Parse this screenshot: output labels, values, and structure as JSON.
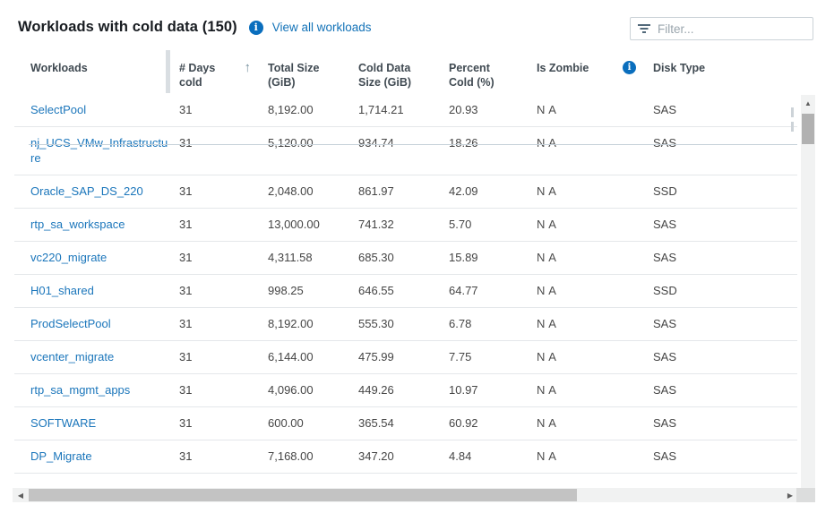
{
  "header": {
    "title": "Workloads with cold data (150)",
    "link_label": "View all workloads",
    "filter_placeholder": "Filter..."
  },
  "icons": {
    "info_glyph": "i",
    "sort_asc": "↑",
    "scroll_up": "▲",
    "scroll_down": "▼",
    "scroll_left": "◀",
    "scroll_right": "▶"
  },
  "colors": {
    "link_blue": "#1473b8",
    "info_icon_blue": "#0a6ebd",
    "header_text": "#404a52",
    "row_border": "#e4e7ea"
  },
  "table": {
    "columns": [
      {
        "label": "Workloads"
      },
      {
        "label": "# Days cold",
        "sort": "asc"
      },
      {
        "label": "Total Size (GiB)"
      },
      {
        "label": "Cold Data Size (GiB)"
      },
      {
        "label": "Percent Cold (%)"
      },
      {
        "label": "Is Zombie",
        "info": true
      },
      {
        "label": "Disk Type"
      }
    ],
    "rows": [
      {
        "name": "SelectPool",
        "days": "31",
        "total": "8,192.00",
        "cold": "1,714.21",
        "percent": "20.93",
        "zombie": "N A",
        "disk": "SAS"
      },
      {
        "name": "nj_UCS_VMw_Infrastructure",
        "days": "31",
        "total": "5,120.00",
        "cold": "934.74",
        "percent": "18.26",
        "zombie": "N A",
        "disk": "SAS"
      },
      {
        "name": "Oracle_SAP_DS_220",
        "days": "31",
        "total": "2,048.00",
        "cold": "861.97",
        "percent": "42.09",
        "zombie": "N A",
        "disk": "SSD"
      },
      {
        "name": "rtp_sa_workspace",
        "days": "31",
        "total": "13,000.00",
        "cold": "741.32",
        "percent": "5.70",
        "zombie": "N A",
        "disk": "SAS"
      },
      {
        "name": "vc220_migrate",
        "days": "31",
        "total": "4,311.58",
        "cold": "685.30",
        "percent": "15.89",
        "zombie": "N A",
        "disk": "SAS"
      },
      {
        "name": "H01_shared",
        "days": "31",
        "total": "998.25",
        "cold": "646.55",
        "percent": "64.77",
        "zombie": "N A",
        "disk": "SSD"
      },
      {
        "name": "ProdSelectPool",
        "days": "31",
        "total": "8,192.00",
        "cold": "555.30",
        "percent": "6.78",
        "zombie": "N A",
        "disk": "SAS"
      },
      {
        "name": "vcenter_migrate",
        "days": "31",
        "total": "6,144.00",
        "cold": "475.99",
        "percent": "7.75",
        "zombie": "N A",
        "disk": "SAS"
      },
      {
        "name": "rtp_sa_mgmt_apps",
        "days": "31",
        "total": "4,096.00",
        "cold": "449.26",
        "percent": "10.97",
        "zombie": "N A",
        "disk": "SAS"
      },
      {
        "name": "SOFTWARE",
        "days": "31",
        "total": "600.00",
        "cold": "365.54",
        "percent": "60.92",
        "zombie": "N A",
        "disk": "SAS"
      },
      {
        "name": "DP_Migrate",
        "days": "31",
        "total": "7,168.00",
        "cold": "347.20",
        "percent": "4.84",
        "zombie": "N A",
        "disk": "SAS"
      }
    ]
  }
}
